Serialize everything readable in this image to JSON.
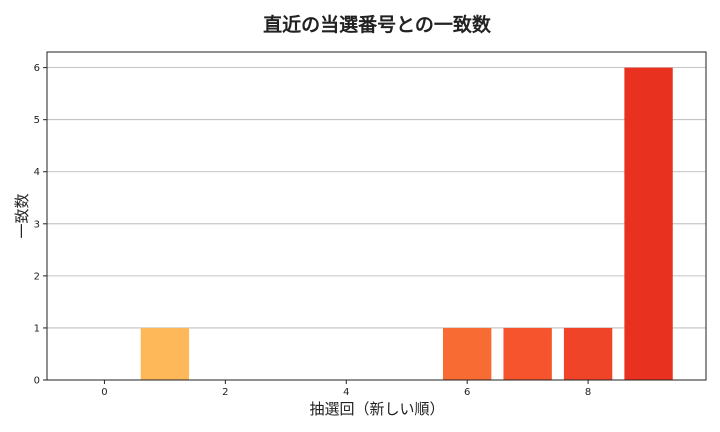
{
  "chart_data": {
    "type": "bar",
    "title": "直近の当選番号との一致数",
    "xlabel": "抽選回（新しい順）",
    "ylabel": "一致数",
    "x": [
      0,
      1,
      2,
      3,
      4,
      5,
      6,
      7,
      8,
      9
    ],
    "values": [
      0,
      1,
      0,
      0,
      0,
      0,
      1,
      1,
      1,
      6
    ],
    "colors": [
      "#feb85a",
      "#feb85a",
      "#fdd9a0",
      "#fdd9a0",
      "#fdd9a0",
      "#fdd9a0",
      "#f86b33",
      "#f5542c",
      "#ef4428",
      "#e8311f"
    ],
    "xlim": [
      -0.95,
      9.95
    ],
    "ylim": [
      0,
      6.3
    ],
    "xticks": [
      0,
      2,
      4,
      6,
      8
    ],
    "yticks": [
      0,
      1,
      2,
      3,
      4,
      5,
      6
    ],
    "grid": "y"
  }
}
